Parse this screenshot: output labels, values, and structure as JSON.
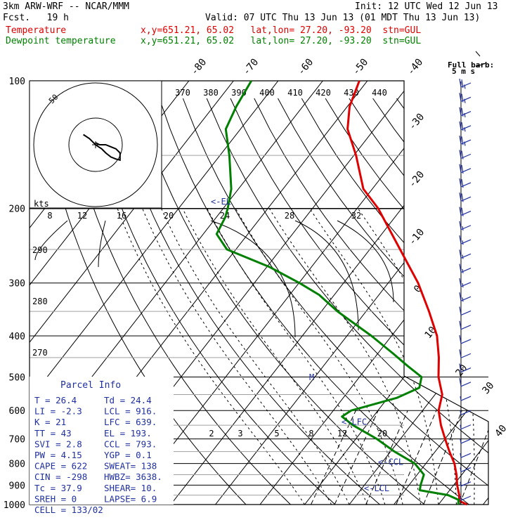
{
  "header": {
    "model": "3km ARW-WRF -- NCAR/MMM",
    "init": "Init: 12 UTC Wed 12 Jun 13",
    "fcst": "Fcst.   19 h",
    "valid": "Valid: 07 UTC Thu 13 Jun 13 (01 MDT Thu 13 Jun 13)",
    "legend": [
      {
        "name": "Temperature",
        "info": "x,y=651.21, 65.02   lat,lon= 27.20, -93.20  stn=GUL",
        "color": "#e00000"
      },
      {
        "name": "Dewpoint temperature",
        "info": "x,y=651.21, 65.02   lat,lon= 27.20, -93.20  stn=GUL",
        "color": "#008000"
      }
    ]
  },
  "wind_scale": {
    "line1": "Full barb:",
    "line2": "5 m s"
  },
  "chart_data": {
    "type": "line",
    "title": "",
    "y_axis": {
      "label": "",
      "scale": "log-pressure",
      "units": "hPa",
      "range": [
        1000,
        100
      ],
      "ticks": [
        100,
        200,
        300,
        400,
        500,
        600,
        700,
        800,
        900,
        1000
      ]
    },
    "isotherm_labels": [
      "-80",
      "-70",
      "-60",
      "-50",
      "-40",
      "-30",
      "-20",
      "-10",
      "0",
      "10",
      "20",
      "30",
      "40"
    ],
    "theta_labels_top": [
      "370",
      "380",
      "390",
      "400",
      "410",
      "420",
      "430",
      "440"
    ],
    "theta_labels_left": [
      "290",
      "280",
      "270"
    ],
    "mixing_ratio_labels": [
      "2",
      "3",
      "5",
      "8",
      "12",
      "20"
    ],
    "series": [
      {
        "name": "Temperature",
        "color": "#e00000",
        "points": [
          [
            1000,
            26.4
          ],
          [
            980,
            24.0
          ],
          [
            950,
            23.0
          ],
          [
            900,
            20.8
          ],
          [
            850,
            18.8
          ],
          [
            800,
            16.4
          ],
          [
            750,
            13.2
          ],
          [
            700,
            10.0
          ],
          [
            650,
            6.7
          ],
          [
            600,
            3.6
          ],
          [
            550,
            1.6
          ],
          [
            500,
            -2.3
          ],
          [
            450,
            -5.6
          ],
          [
            400,
            -9.8
          ],
          [
            350,
            -15.9
          ],
          [
            300,
            -23.3
          ],
          [
            250,
            -33.2
          ],
          [
            200,
            -45.3
          ],
          [
            180,
            -52.0
          ],
          [
            150,
            -59.5
          ],
          [
            130,
            -66.0
          ],
          [
            115,
            -69.5
          ],
          [
            100,
            -71.8
          ]
        ]
      },
      {
        "name": "Dewpoint temperature",
        "color": "#008000",
        "points": [
          [
            1000,
            24.4
          ],
          [
            975,
            23.7
          ],
          [
            950,
            20.5
          ],
          [
            925,
            13.3
          ],
          [
            900,
            12.6
          ],
          [
            850,
            11.5
          ],
          [
            800,
            7.5
          ],
          [
            750,
            0.9
          ],
          [
            700,
            -5.3
          ],
          [
            650,
            -13.0
          ],
          [
            620,
            -17.0
          ],
          [
            600,
            -16.0
          ],
          [
            560,
            -8.0
          ],
          [
            530,
            -4.7
          ],
          [
            500,
            -6.1
          ],
          [
            470,
            -11.3
          ],
          [
            440,
            -16.6
          ],
          [
            400,
            -24.5
          ],
          [
            350,
            -36.4
          ],
          [
            320,
            -43.4
          ],
          [
            300,
            -49.9
          ],
          [
            275,
            -59.4
          ],
          [
            250,
            -72.0
          ],
          [
            230,
            -77.0
          ],
          [
            210,
            -78.0
          ],
          [
            200,
            -79.0
          ],
          [
            180,
            -81.6
          ],
          [
            150,
            -87.9
          ],
          [
            130,
            -93.3
          ],
          [
            115,
            -94.9
          ],
          [
            100,
            -96.0
          ]
        ]
      }
    ],
    "levels": [
      {
        "label": "<-EL",
        "p": 193
      },
      {
        "label": "<-LFC",
        "p": 639
      },
      {
        "label": "<-CCL",
        "p": 793
      },
      {
        "label": "<-LCL",
        "p": 916
      }
    ],
    "winds": {
      "kt": [
        25,
        25,
        25,
        25,
        25,
        20,
        20,
        20,
        20,
        20,
        15,
        15,
        15,
        15,
        15,
        15,
        10,
        10,
        10,
        10,
        10,
        10,
        5,
        5,
        5,
        5,
        5,
        5,
        5,
        5
      ]
    },
    "hodograph": {
      "axis_label": "kts",
      "ring_labels": [
        "8",
        "12",
        "16",
        "20",
        "24",
        "28",
        "32"
      ],
      "outer_ring_label": "50",
      "points": [
        [
          -12,
          10
        ],
        [
          -6,
          6
        ],
        [
          -2,
          2
        ],
        [
          0,
          0
        ],
        [
          3,
          -2
        ],
        [
          6,
          -4
        ],
        [
          10,
          -8
        ],
        [
          15,
          -12
        ],
        [
          20,
          -14
        ],
        [
          24,
          -15
        ],
        [
          24,
          -8
        ],
        [
          20,
          -4
        ],
        [
          15,
          -2
        ],
        [
          10,
          0
        ],
        [
          4,
          0
        ],
        [
          0,
          2
        ]
      ]
    },
    "parcel_info": {
      "title": "Parcel  Info",
      "rows": [
        [
          "T    =    26.4",
          "Td  =  24.4"
        ],
        [
          "LI   =    -2.3",
          "LCL =  916."
        ],
        [
          "K    =      21",
          "LFC =  639."
        ],
        [
          "TT   =      43",
          "EL  =  193."
        ],
        [
          "SVI  =     2.8",
          "CCL =  793."
        ],
        [
          "PW   =    4.15",
          "YGP =   0.1"
        ],
        [
          "CAPE =     622",
          "SWEAT=  138"
        ],
        [
          "CIN  =    -298",
          "HWBZ= 3638."
        ],
        [
          "Tc   =    37.9",
          "SHEAR=  10."
        ],
        [
          "SREH =       0",
          "LAPSE=  6.9"
        ],
        [
          "CELL = 133/02",
          ""
        ]
      ]
    }
  }
}
